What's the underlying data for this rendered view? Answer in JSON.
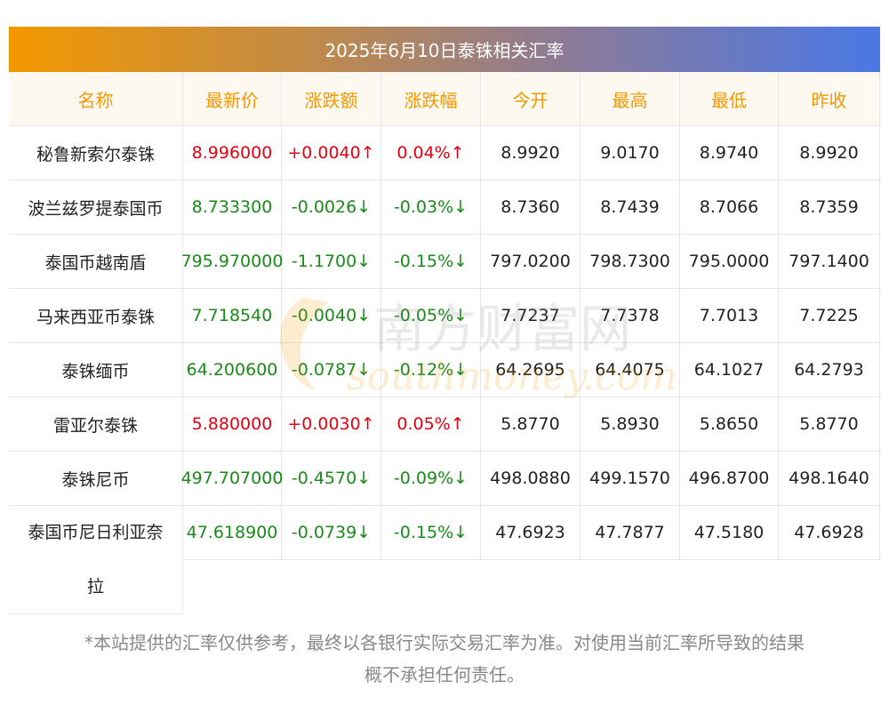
{
  "banner": {
    "title": "2025年6月10日泰铢相关汇率"
  },
  "table": {
    "headers": [
      "名称",
      "最新价",
      "涨跌额",
      "涨跌幅",
      "今开",
      "最高",
      "最低",
      "昨收"
    ],
    "rows": [
      {
        "name": "秘鲁新索尔泰铢",
        "price": "8.996000",
        "change": "+0.0040↑",
        "pct": "0.04%↑",
        "open": "8.9920",
        "high": "9.0170",
        "low": "8.9740",
        "prev": "8.9920",
        "trend": "up"
      },
      {
        "name": "波兰兹罗提泰国币",
        "price": "8.733300",
        "change": "-0.0026↓",
        "pct": "-0.03%↓",
        "open": "8.7360",
        "high": "8.7439",
        "low": "8.7066",
        "prev": "8.7359",
        "trend": "down"
      },
      {
        "name": "泰国币越南盾",
        "price": "795.970000",
        "change": "-1.1700↓",
        "pct": "-0.15%↓",
        "open": "797.0200",
        "high": "798.7300",
        "low": "795.0000",
        "prev": "797.1400",
        "trend": "down"
      },
      {
        "name": "马来西亚币泰铢",
        "price": "7.718540",
        "change": "-0.0040↓",
        "pct": "-0.05%↓",
        "open": "7.7237",
        "high": "7.7378",
        "low": "7.7013",
        "prev": "7.7225",
        "trend": "down"
      },
      {
        "name": "泰铢缅币",
        "price": "64.200600",
        "change": "-0.0787↓",
        "pct": "-0.12%↓",
        "open": "64.2695",
        "high": "64.4075",
        "low": "64.1027",
        "prev": "64.2793",
        "trend": "down"
      },
      {
        "name": "雷亚尔泰铢",
        "price": "5.880000",
        "change": "+0.0030↑",
        "pct": "0.05%↑",
        "open": "5.8770",
        "high": "5.8930",
        "low": "5.8650",
        "prev": "5.8770",
        "trend": "up"
      },
      {
        "name": "泰铢尼币",
        "price": "497.707000",
        "change": "-0.4570↓",
        "pct": "-0.09%↓",
        "open": "498.0880",
        "high": "499.1570",
        "low": "496.8700",
        "prev": "498.1640",
        "trend": "down"
      },
      {
        "name_line1": "泰国币尼日利亚奈",
        "name_line2": "拉",
        "price": "47.618900",
        "change": "-0.0739↓",
        "pct": "-0.15%↓",
        "open": "47.6923",
        "high": "47.7877",
        "low": "47.5180",
        "prev": "47.6928",
        "trend": "down"
      }
    ]
  },
  "watermark": {
    "cn": "南方财富网",
    "en": "southmoney.com"
  },
  "footer": {
    "line1": "*本站提供的汇率仅供参考，最终以各银行实际交易汇率为准。对使用当前汇率所导致的结果",
    "line2": "概不承担任何责任。"
  },
  "colors": {
    "up": "#e60012",
    "down": "#1a8a1a",
    "header_text": "#f39800"
  }
}
